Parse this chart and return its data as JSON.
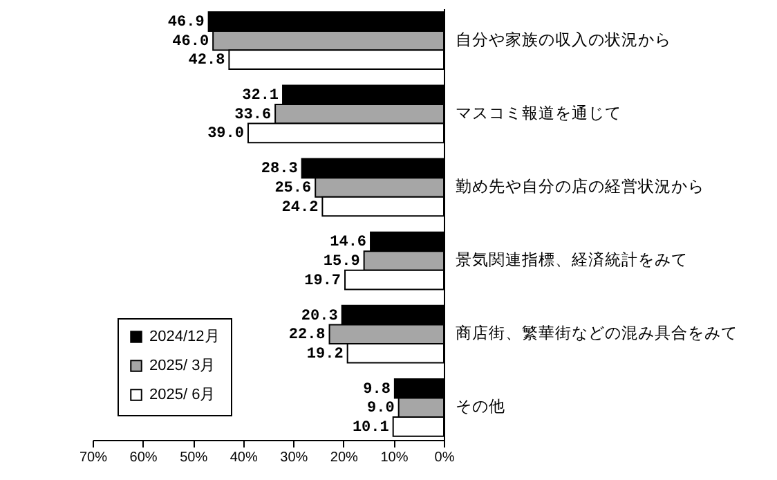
{
  "chart_data": {
    "type": "bar",
    "orientation": "horizontal",
    "categories": [
      "自分や家族の収入の状況から",
      "マスコミ報道を通じて",
      "勤め先や自分の店の経営状況から",
      "景気関連指標、経済統計をみて",
      "商店街、繁華街などの混み具合をみて",
      "その他"
    ],
    "series": [
      {
        "name": "2024/12月",
        "color": "#000000",
        "values": [
          46.9,
          32.1,
          28.3,
          14.6,
          20.3,
          9.8
        ],
        "value_labels": [
          "46.9",
          "32.1",
          "28.3",
          "14.6",
          "20.3",
          "9.8"
        ]
      },
      {
        "name": "2025/ 3月",
        "color": "#a6a6a6",
        "values": [
          46.0,
          33.6,
          25.6,
          15.9,
          22.8,
          9.0
        ],
        "value_labels": [
          "46.0",
          "33.6",
          "25.6",
          "15.9",
          "22.8",
          "9.0"
        ]
      },
      {
        "name": "2025/ 6月",
        "color": "#ffffff",
        "values": [
          42.8,
          39.0,
          24.2,
          19.7,
          19.2,
          10.1
        ],
        "value_labels": [
          "42.8",
          "39.0",
          "24.2",
          "19.7",
          "19.2",
          "10.1"
        ]
      }
    ],
    "xlim": [
      70,
      0
    ],
    "xticks": [
      {
        "value": 70,
        "label": "70%"
      },
      {
        "value": 60,
        "label": "60%"
      },
      {
        "value": 50,
        "label": "50%"
      },
      {
        "value": 40,
        "label": "40%"
      },
      {
        "value": 30,
        "label": "30%"
      },
      {
        "value": 20,
        "label": "20%"
      },
      {
        "value": 10,
        "label": "10%"
      },
      {
        "value": 0,
        "label": "0%"
      }
    ],
    "legend": "bottom left",
    "grid": false
  }
}
